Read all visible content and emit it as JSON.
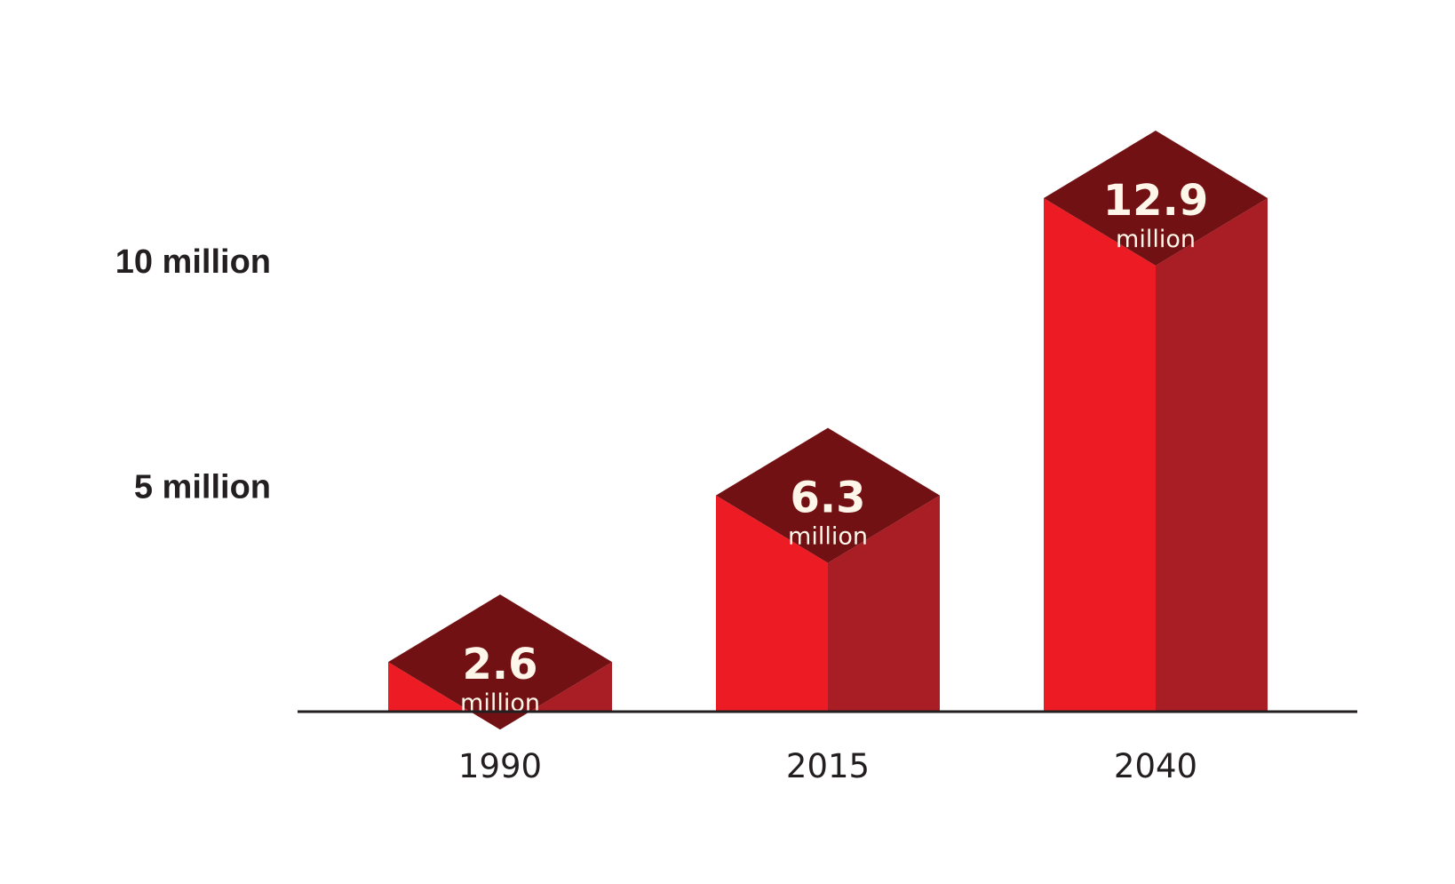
{
  "chart_data": {
    "type": "bar",
    "title": "",
    "xlabel": "",
    "ylabel": "",
    "categories": [
      "1990",
      "2015",
      "2040"
    ],
    "series": [
      {
        "values": [
          2.6,
          6.3,
          12.9
        ],
        "value_labels": [
          "2.6",
          "6.3",
          "12.9"
        ],
        "unit_label": "million"
      }
    ],
    "y_ticks": [
      {
        "value": 5,
        "label": "5 million"
      },
      {
        "value": 10,
        "label": "10 million"
      }
    ],
    "ylim": [
      0,
      15
    ],
    "grid": false,
    "legend": "none",
    "colors": {
      "front": "#ed1c24",
      "side": "#a81e24",
      "top": "#721113",
      "label_text": "#fff6ea",
      "axis": "#231f20"
    }
  }
}
